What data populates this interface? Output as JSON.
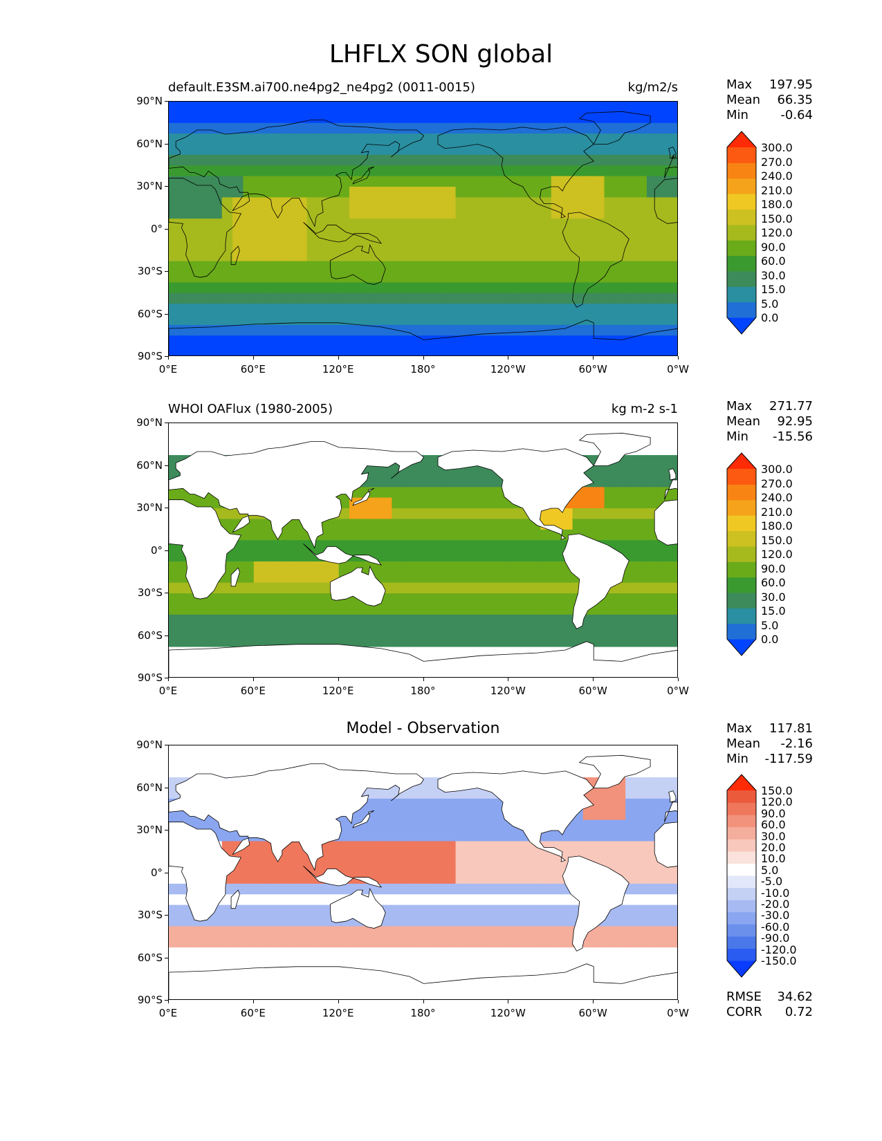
{
  "title": "LHFLX SON global",
  "axes": {
    "lat_ticks": [
      "90°N",
      "60°N",
      "30°N",
      "0°",
      "30°S",
      "60°S",
      "90°S"
    ],
    "lon_ticks": [
      "0°E",
      "60°E",
      "120°E",
      "180°",
      "120°W",
      "60°W",
      "0°W"
    ]
  },
  "panels": [
    {
      "subtitle": "default.E3SM.ai700.ne4pg2_ne4pg2 (0011-0015)",
      "units": "kg/m2/s",
      "center_title": "",
      "stats": [
        {
          "label": "Max",
          "value": "197.95"
        },
        {
          "label": "Mean",
          "value": "66.35"
        },
        {
          "label": "Min",
          "value": "-0.64"
        }
      ],
      "colorbar": {
        "labels": [
          "300.0",
          "270.0",
          "240.0",
          "210.0",
          "180.0",
          "150.0",
          "120.0",
          "90.0",
          "60.0",
          "30.0",
          "15.0",
          "5.0",
          "0.0"
        ],
        "colors": [
          "#0044ff",
          "#1f6fd6",
          "#2a8fa0",
          "#3d8a5a",
          "#3a9a30",
          "#6aab1a",
          "#a6ba1e",
          "#cdc021",
          "#f0c824",
          "#f5a31a",
          "#f88413",
          "#fb5a10",
          "#ff2a06"
        ]
      }
    },
    {
      "subtitle": "WHOI OAFlux (1980-2005)",
      "units": "kg m-2 s-1",
      "center_title": "",
      "stats": [
        {
          "label": "Max",
          "value": "271.77"
        },
        {
          "label": "Mean",
          "value": "92.95"
        },
        {
          "label": "Min",
          "value": "-15.56"
        }
      ],
      "colorbar": {
        "labels": [
          "300.0",
          "270.0",
          "240.0",
          "210.0",
          "180.0",
          "150.0",
          "120.0",
          "90.0",
          "60.0",
          "30.0",
          "15.0",
          "5.0",
          "0.0"
        ],
        "colors": [
          "#0044ff",
          "#1f6fd6",
          "#2a8fa0",
          "#3d8a5a",
          "#3a9a30",
          "#6aab1a",
          "#a6ba1e",
          "#cdc021",
          "#f0c824",
          "#f5a31a",
          "#f88413",
          "#fb5a10",
          "#ff2a06"
        ]
      }
    },
    {
      "subtitle": "",
      "units": "",
      "center_title": "Model - Observation",
      "stats": [
        {
          "label": "Max",
          "value": "117.81"
        },
        {
          "label": "Mean",
          "value": "-2.16"
        },
        {
          "label": "Min",
          "value": "-117.59"
        }
      ],
      "bottom_stats": [
        {
          "label": "RMSE",
          "value": "34.62"
        },
        {
          "label": "CORR",
          "value": "0.72"
        }
      ],
      "colorbar": {
        "labels": [
          "150.0",
          "120.0",
          "90.0",
          "60.0",
          "30.0",
          "20.0",
          "10.0",
          "5.0",
          "-5.0",
          "-10.0",
          "-20.0",
          "-30.0",
          "-60.0",
          "-90.0",
          "-120.0",
          "-150.0"
        ],
        "colors": [
          "#0a3cff",
          "#2a5cf2",
          "#4a78ea",
          "#6a90ec",
          "#8aa6f0",
          "#a7baf2",
          "#c5d0f5",
          "#e2e8fa",
          "#ffffff",
          "#fbe2dc",
          "#f8c8bc",
          "#f5ad9c",
          "#f2927c",
          "#ef775c",
          "#ec5a3c",
          "#ff2a06"
        ]
      }
    }
  ]
}
